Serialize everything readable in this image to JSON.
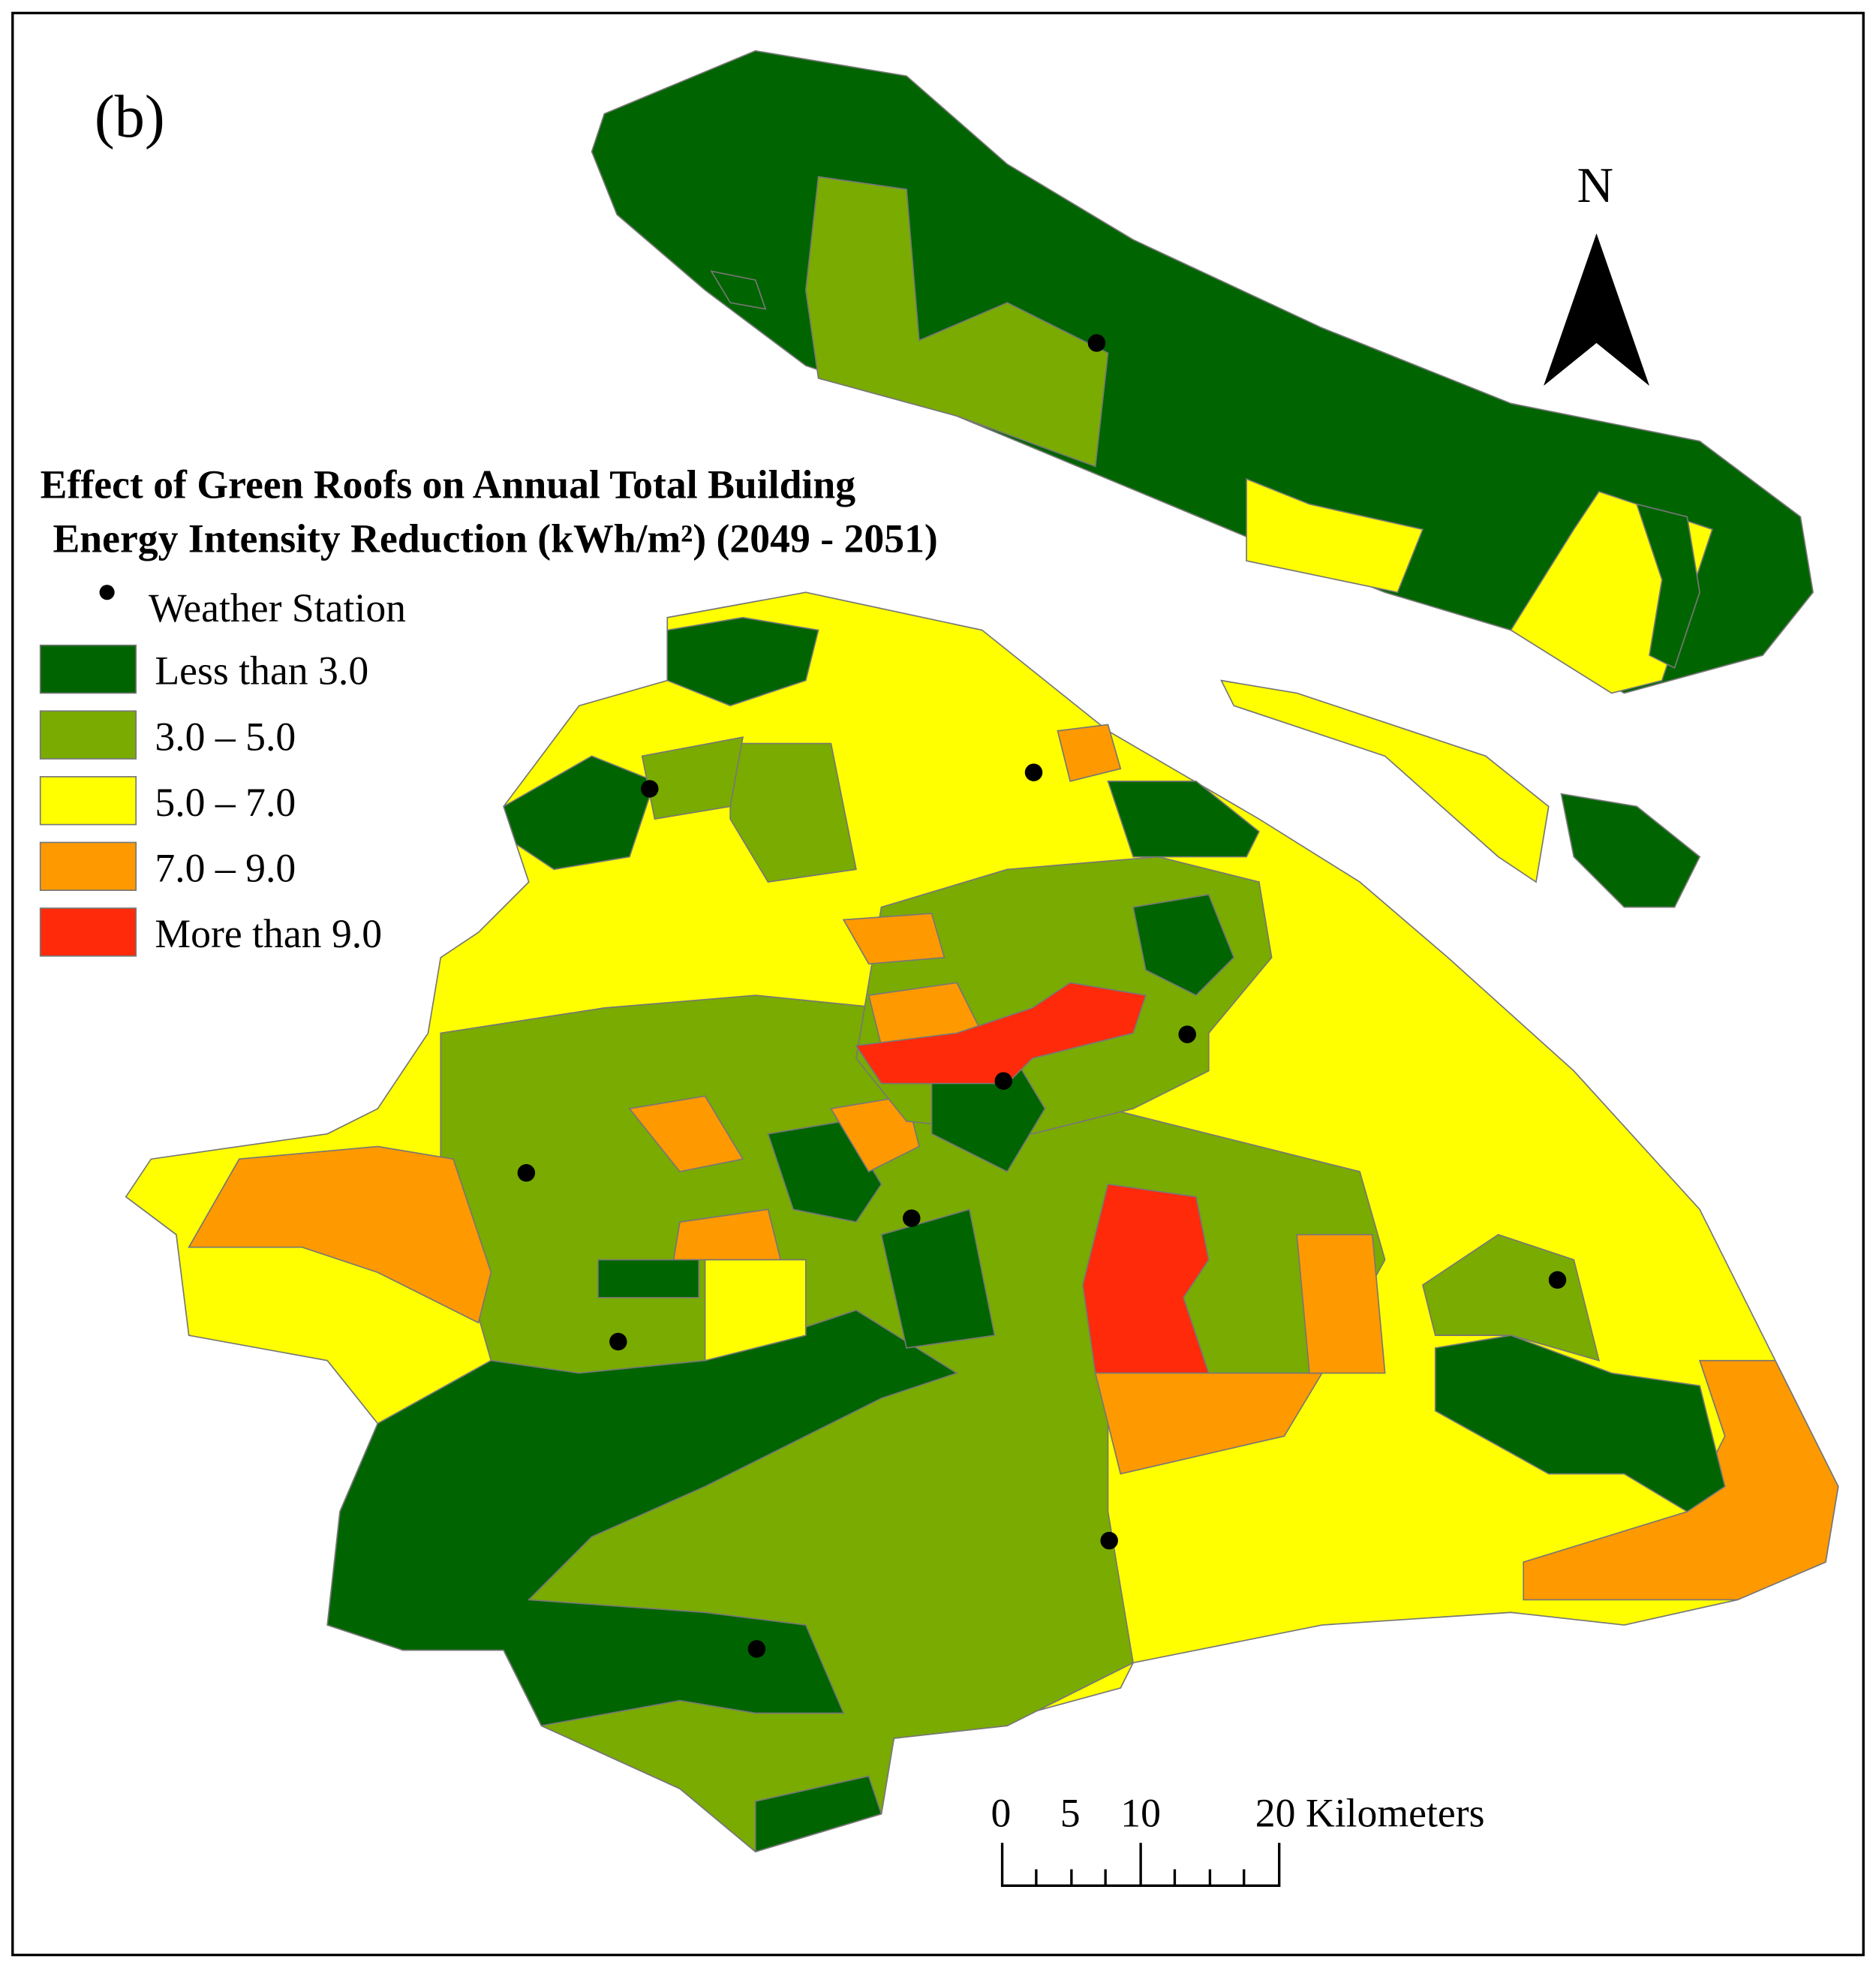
{
  "panel_label": "(b)",
  "north_label": "N",
  "legend": {
    "title": [
      "Effect of Green Roofs on Annual Total Building",
      "Energy Intensity Reduction (kWh/m²) (2049 - 2051)"
    ],
    "station_label": "Weather Station",
    "items": [
      {
        "label": "Less than 3.0",
        "color": "#006400"
      },
      {
        "label": "3.0 – 5.0",
        "color": "#7aab00"
      },
      {
        "label": "5.0 – 7.0",
        "color": "#ffff00"
      },
      {
        "label": "7.0 – 9.0",
        "color": "#ff9900"
      },
      {
        "label": "More than 9.0",
        "color": "#ff2a0a"
      }
    ]
  },
  "scale_bar": {
    "labels": [
      "0",
      "5",
      "10",
      "20 Kilometers"
    ]
  }
}
